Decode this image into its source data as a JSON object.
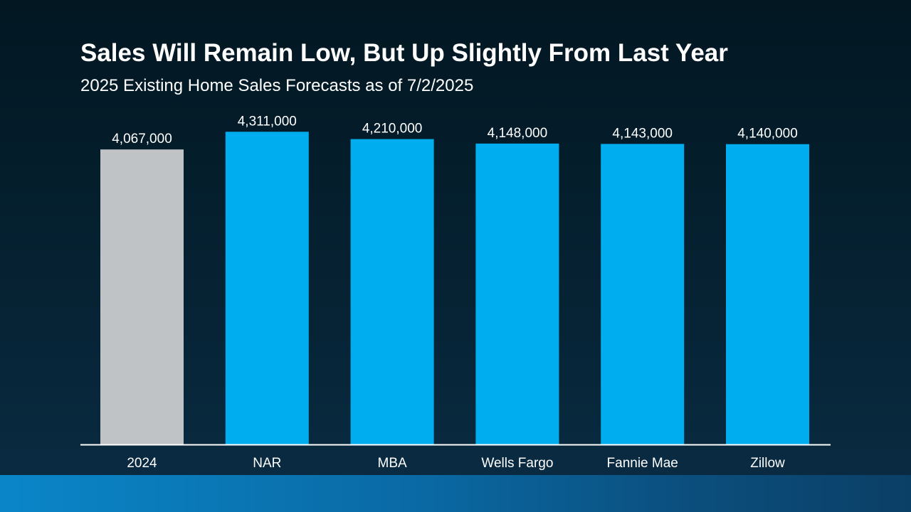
{
  "header": {
    "title": "Sales Will Remain Low, But Up Slightly From Last Year",
    "subtitle": "2025 Existing Home Sales Forecasts as of 7/2/2025"
  },
  "chart_data": {
    "type": "bar",
    "title": "Sales Will Remain Low, But Up Slightly From Last Year",
    "subtitle": "2025 Existing Home Sales Forecasts as of 7/2/2025",
    "categories": [
      "2024",
      "NAR",
      "MBA",
      "Wells Fargo",
      "Fannie Mae",
      "Zillow"
    ],
    "values": [
      4067000,
      4311000,
      4210000,
      4148000,
      4143000,
      4140000
    ],
    "data_labels": [
      "4,067,000",
      "4,311,000",
      "4,210,000",
      "4,148,000",
      "4,143,000",
      "4,140,000"
    ],
    "bar_colors": [
      "#c0c3c5",
      "#00adee",
      "#00adee",
      "#00adee",
      "#00adee",
      "#00adee"
    ],
    "ylim": [
      0,
      5000000
    ],
    "grid": false,
    "legend": "none"
  },
  "colors": {
    "baseline": "#ffffff",
    "label_text": "#ffffff"
  }
}
